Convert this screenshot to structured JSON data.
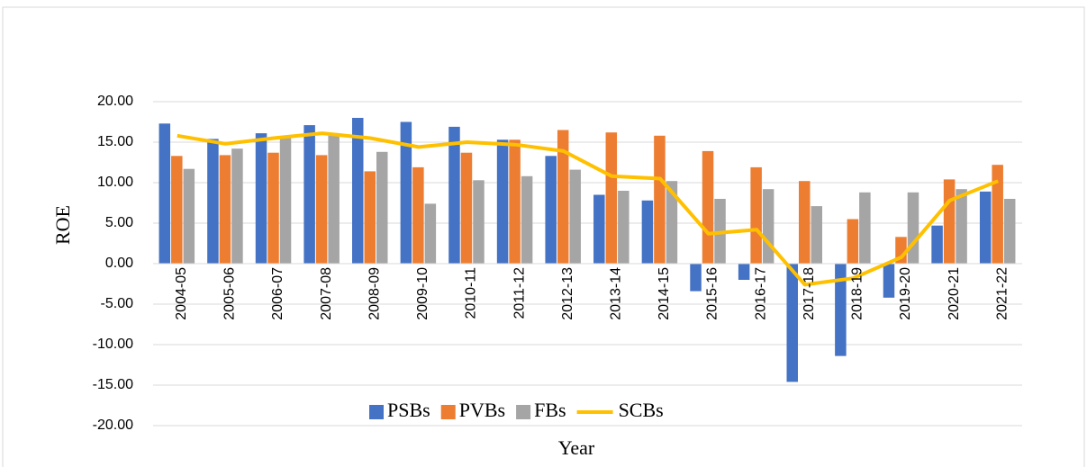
{
  "chart_data": {
    "type": "bar",
    "x_label": "Year",
    "y_label": "ROE",
    "categories": [
      "2004-05",
      "2005-06",
      "2006-07",
      "2007-08",
      "2008-09",
      "2009-10",
      "2010-11",
      "2011-12",
      "2012-13",
      "2013-14",
      "2014-15",
      "2015-16",
      "2016-17",
      "2017-18",
      "2018-19",
      "2019-20",
      "2020-21",
      "2021-22"
    ],
    "series": [
      {
        "name": "PSBs",
        "type": "bar",
        "color": "#4472c4",
        "values": [
          17.3,
          15.4,
          16.1,
          17.1,
          18.0,
          17.5,
          16.9,
          15.3,
          13.3,
          8.5,
          7.8,
          -3.4,
          -2.0,
          -14.6,
          -11.4,
          -4.2,
          4.7,
          8.9
        ]
      },
      {
        "name": "PVBs",
        "type": "bar",
        "color": "#ed7d31",
        "values": [
          13.3,
          13.4,
          13.7,
          13.4,
          11.4,
          11.9,
          13.7,
          15.3,
          16.5,
          16.2,
          15.8,
          13.9,
          11.9,
          10.2,
          5.5,
          3.3,
          10.4,
          12.2
        ]
      },
      {
        "name": "FBs",
        "type": "bar",
        "color": "#a5a5a5",
        "values": [
          11.7,
          14.2,
          15.6,
          15.8,
          13.8,
          7.4,
          10.3,
          10.8,
          11.6,
          9.0,
          10.2,
          8.0,
          9.2,
          7.1,
          8.8,
          8.8,
          9.2,
          8.0
        ]
      },
      {
        "name": "SCBs",
        "type": "line",
        "color": "#ffc000",
        "values": [
          15.8,
          14.8,
          15.5,
          16.1,
          15.5,
          14.4,
          15.0,
          14.7,
          13.9,
          10.8,
          10.5,
          3.7,
          4.2,
          -2.6,
          -1.8,
          0.8,
          7.8,
          10.2
        ]
      }
    ],
    "ylim": [
      -20,
      20
    ],
    "yticks": [
      {
        "value": -20,
        "label": "-20.00"
      },
      {
        "value": -15,
        "label": "-15.00"
      },
      {
        "value": -10,
        "label": "-10.00"
      },
      {
        "value": -5,
        "label": "-5.00"
      },
      {
        "value": 0,
        "label": "0.00"
      },
      {
        "value": 5,
        "label": "5.00"
      },
      {
        "value": 10,
        "label": "10.00"
      },
      {
        "value": 15,
        "label": "15.00"
      },
      {
        "value": 20,
        "label": "20.00"
      }
    ],
    "grid": true,
    "legend": "bottom"
  }
}
